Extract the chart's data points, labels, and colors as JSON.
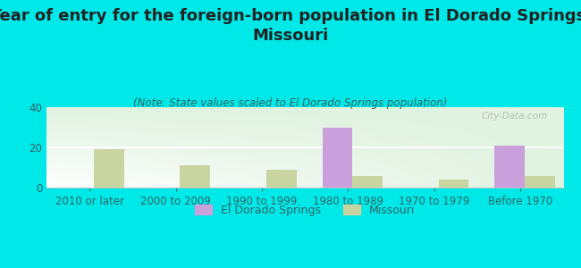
{
  "title": "Year of entry for the foreign-born population in El Dorado Springs,\nMissouri",
  "subtitle": "(Note: State values scaled to El Dorado Springs population)",
  "categories": [
    "2010 or later",
    "2000 to 2009",
    "1990 to 1999",
    "1980 to 1989",
    "1970 to 1979",
    "Before 1970"
  ],
  "el_dorado_values": [
    0,
    0,
    0,
    30,
    0,
    21
  ],
  "missouri_values": [
    19,
    11,
    9,
    6,
    4,
    6
  ],
  "el_dorado_color": "#c9a0dc",
  "missouri_color": "#c8d5a0",
  "background_color": "#00e8e8",
  "ylim": [
    0,
    40
  ],
  "yticks": [
    0,
    20,
    40
  ],
  "bar_width": 0.35,
  "title_fontsize": 13,
  "subtitle_fontsize": 8.5,
  "tick_fontsize": 8.5,
  "legend_fontsize": 9,
  "watermark": "City-Data.com"
}
